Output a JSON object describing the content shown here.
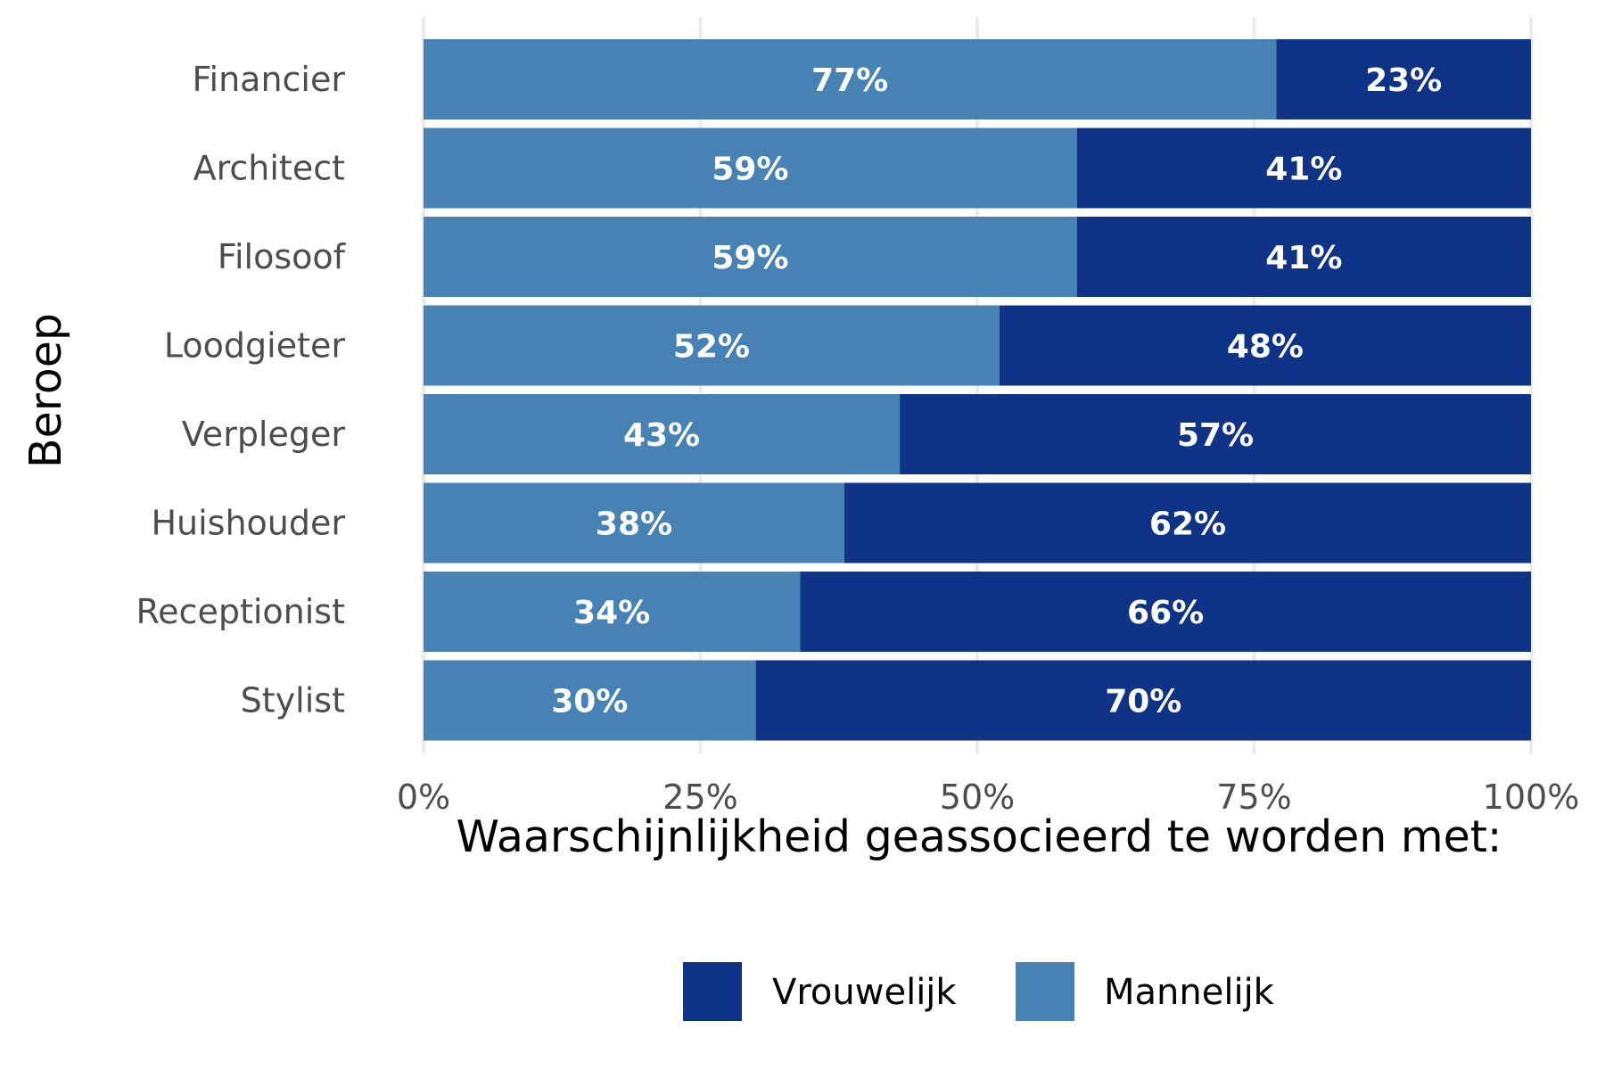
{
  "chart_data": {
    "type": "bar",
    "orientation": "horizontal",
    "stacked": true,
    "categories": [
      "Financier",
      "Architect",
      "Filosoof",
      "Loodgieter",
      "Verpleger",
      "Huishouder",
      "Receptionist",
      "Stylist"
    ],
    "series": [
      {
        "name": "Mannelijk",
        "color": "#4682b4",
        "values": [
          77,
          59,
          59,
          52,
          43,
          38,
          34,
          30
        ]
      },
      {
        "name": "Vrouwelijk",
        "color": "#0f3386",
        "values": [
          23,
          41,
          41,
          48,
          57,
          62,
          66,
          70
        ]
      }
    ],
    "xlabel": "Waarschijnlijkheid geassocieerd te worden met:",
    "ylabel": "Beroep",
    "xlim": [
      0,
      100
    ],
    "x_ticks": [
      "0%",
      "25%",
      "50%",
      "75%",
      "100%"
    ],
    "value_suffix": "%",
    "grid": true,
    "legend": {
      "position": "bottom",
      "items": [
        {
          "label": "Vrouwelijk",
          "color": "#0f3386"
        },
        {
          "label": "Mannelijk",
          "color": "#4682b4"
        }
      ]
    }
  }
}
